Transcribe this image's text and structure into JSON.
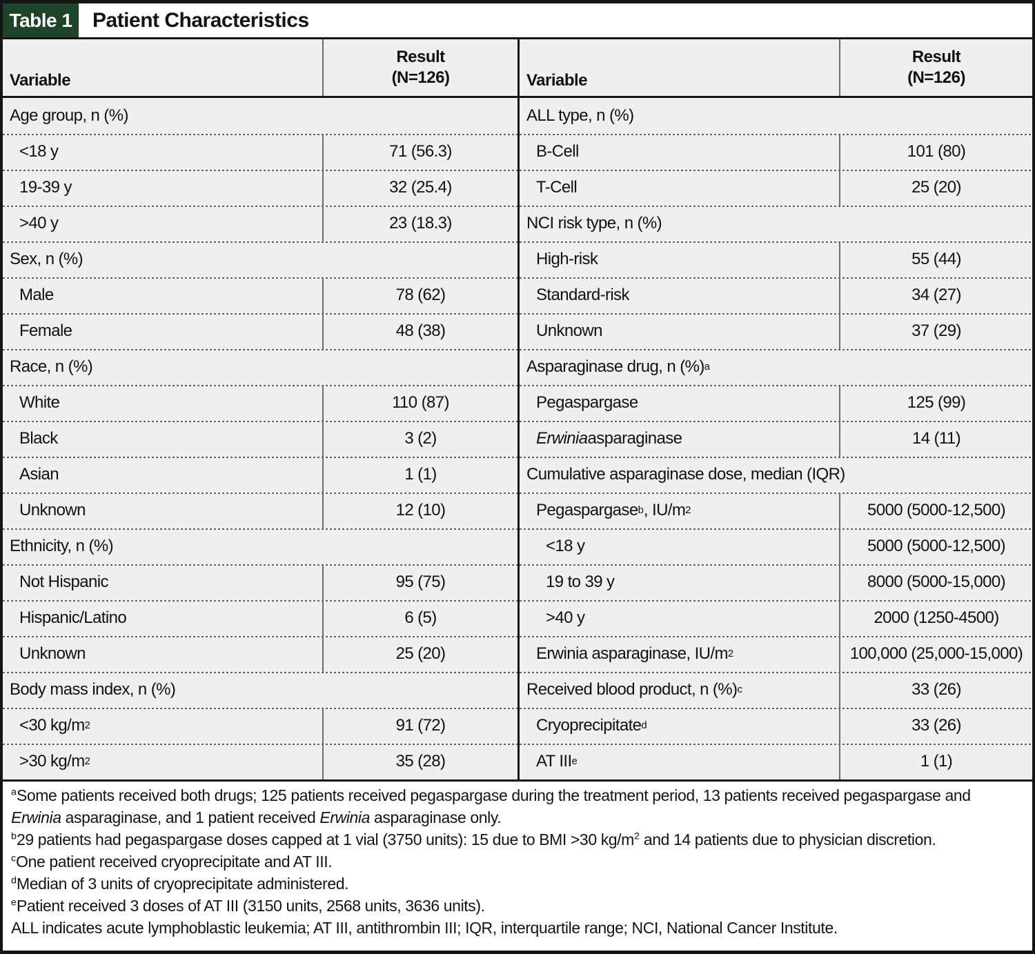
{
  "table_label": "Table 1",
  "table_title": "Patient Characteristics",
  "columns": {
    "variable": "Variable",
    "result_line1": "Result",
    "result_line2": "(N=126)"
  },
  "colors": {
    "accent_green": "#1d4428",
    "row_background": "#efefed",
    "border_black": "#141414"
  },
  "left": {
    "rows": [
      {
        "label": "Age group, n (%)",
        "value": null,
        "indent": 0,
        "span": true
      },
      {
        "label": "<18 y",
        "value": "71 (56.3)",
        "indent": 1,
        "span": false
      },
      {
        "label": "19-39 y",
        "value": "32 (25.4)",
        "indent": 1,
        "span": false
      },
      {
        "label": ">40 y",
        "value": "23 (18.3)",
        "indent": 1,
        "span": false
      },
      {
        "label": "Sex, n (%)",
        "value": null,
        "indent": 0,
        "span": true
      },
      {
        "label": "Male",
        "value": "78 (62)",
        "indent": 1,
        "span": false
      },
      {
        "label": "Female",
        "value": "48 (38)",
        "indent": 1,
        "span": false
      },
      {
        "label": "Race, n (%)",
        "value": null,
        "indent": 0,
        "span": true
      },
      {
        "label": "White",
        "value": "110 (87)",
        "indent": 1,
        "span": false
      },
      {
        "label": "Black",
        "value": "3 (2)",
        "indent": 1,
        "span": false
      },
      {
        "label": "Asian",
        "value": "1 (1)",
        "indent": 1,
        "span": false
      },
      {
        "label": "Unknown",
        "value": "12 (10)",
        "indent": 1,
        "span": false
      },
      {
        "label": "Ethnicity, n (%)",
        "value": null,
        "indent": 0,
        "span": true
      },
      {
        "label": "Not Hispanic",
        "value": "95 (75)",
        "indent": 1,
        "span": false
      },
      {
        "label": "Hispanic/Latino",
        "value": "6 (5)",
        "indent": 1,
        "span": false
      },
      {
        "label": "Unknown",
        "value": "25 (20)",
        "indent": 1,
        "span": false
      },
      {
        "label": "Body mass index, n (%)",
        "value": null,
        "indent": 0,
        "span": true
      },
      {
        "label": "<30 kg/m^{2}",
        "value": "91 (72)",
        "indent": 1,
        "span": false
      },
      {
        "label": ">30 kg/m^{2}",
        "value": "35 (28)",
        "indent": 1,
        "span": false
      }
    ]
  },
  "right": {
    "rows": [
      {
        "label": "ALL type, n (%)",
        "value": null,
        "indent": 0,
        "span": true
      },
      {
        "label": "B-Cell",
        "value": "101 (80)",
        "indent": 1,
        "span": false
      },
      {
        "label": "T-Cell",
        "value": "25 (20)",
        "indent": 1,
        "span": false
      },
      {
        "label": "NCI risk type, n (%)",
        "value": null,
        "indent": 0,
        "span": true
      },
      {
        "label": "High-risk",
        "value": "55 (44)",
        "indent": 1,
        "span": false
      },
      {
        "label": "Standard-risk",
        "value": "34 (27)",
        "indent": 1,
        "span": false
      },
      {
        "label": "Unknown",
        "value": "37 (29)",
        "indent": 1,
        "span": false
      },
      {
        "label": "Asparaginase drug, n (%)^{a}",
        "value": null,
        "indent": 0,
        "span": true
      },
      {
        "label": "Pegaspargase",
        "value": "125 (99)",
        "indent": 1,
        "span": false
      },
      {
        "label": "*Erwinia* asparaginase",
        "value": "14 (11)",
        "indent": 1,
        "span": false
      },
      {
        "label": "Cumulative asparaginase dose, median (IQR)",
        "value": null,
        "indent": 0,
        "span": true
      },
      {
        "label": "Pegaspargase^{b}, IU/m^{2}",
        "value": "5000 (5000-12,500)",
        "indent": 1,
        "span": false
      },
      {
        "label": "<18 y",
        "value": "5000 (5000-12,500)",
        "indent": 2,
        "span": false
      },
      {
        "label": "19 to 39 y",
        "value": "8000 (5000-15,000)",
        "indent": 2,
        "span": false
      },
      {
        "label": ">40 y",
        "value": "2000 (1250-4500)",
        "indent": 2,
        "span": false
      },
      {
        "label": "Erwinia asparaginase, IU/m^{2}",
        "value": "100,000 (25,000-15,000)",
        "indent": 1,
        "span": false
      },
      {
        "label": "Received blood product, n (%)^{c}",
        "value": "33 (26)",
        "indent": 0,
        "span": false
      },
      {
        "label": "Cryoprecipitate^{d}",
        "value": "33 (26)",
        "indent": 1,
        "span": false
      },
      {
        "label": "AT III^{e}",
        "value": "1 (1)",
        "indent": 1,
        "span": false
      }
    ]
  },
  "footnotes": [
    {
      "marker": "a",
      "text": "Some patients received both drugs; 125 patients received pegaspargase during the treatment period, 13 patients received pegaspargase and *Erwinia* asparaginase, and 1 patient received *Erwinia* asparaginase only."
    },
    {
      "marker": "b",
      "text": "29 patients had pegaspargase doses capped at 1 vial (3750 units): 15 due to BMI >30 kg/m^{2} and 14 patients due to physician discretion."
    },
    {
      "marker": "c",
      "text": "One patient received cryoprecipitate and AT III."
    },
    {
      "marker": "d",
      "text": "Median of 3 units of cryoprecipitate administered."
    },
    {
      "marker": "e",
      "text": "Patient received 3 doses of AT III (3150 units, 2568 units, 3636 units)."
    },
    {
      "marker": "",
      "text": "ALL indicates acute lymphoblastic leukemia; AT III, antithrombin III; IQR, interquartile range; NCI, National Cancer Institute."
    }
  ]
}
